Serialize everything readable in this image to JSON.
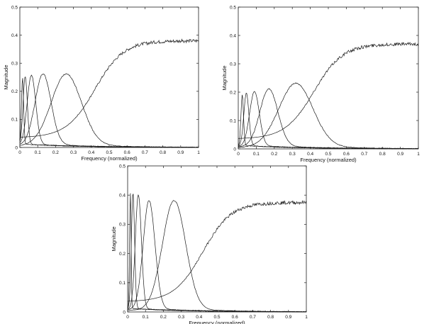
{
  "chart_data": [
    {
      "type": "line",
      "xlabel": "Frequency (normalized)",
      "ylabel": "Magnitude",
      "xlim": [
        0,
        1
      ],
      "ylim": [
        0,
        0.5
      ],
      "x_ticks": [
        "0",
        "0.1",
        "0.2",
        "0.3",
        "0.4",
        "0.5",
        "0.6",
        "0.7",
        "0.8",
        "0.9",
        "1"
      ],
      "y_ticks": [
        "0",
        "0.1",
        "0.2",
        "0.3",
        "0.4",
        "0.5"
      ],
      "grid": false,
      "series": [
        {
          "center": 0.0,
          "peak": 0.38,
          "width": 0.08,
          "kind": "lowpass_rise"
        },
        {
          "center": 0.26,
          "peak": 0.25,
          "width": 0.085
        },
        {
          "center": 0.13,
          "peak": 0.25,
          "width": 0.045
        },
        {
          "center": 0.065,
          "peak": 0.245,
          "width": 0.024
        },
        {
          "center": 0.03,
          "peak": 0.24,
          "width": 0.012
        },
        {
          "center": 0.015,
          "peak": 0.235,
          "width": 0.006
        }
      ]
    },
    {
      "type": "line",
      "xlabel": "Frequency (normalized)",
      "ylabel": "Magnitude",
      "xlim": [
        0,
        1
      ],
      "ylim": [
        0,
        0.5
      ],
      "x_ticks": [
        "0",
        "0.1",
        "0.2",
        "0.3",
        "0.4",
        "0.5",
        "0.6",
        "0.7",
        "0.8",
        "0.9",
        "1"
      ],
      "y_ticks": [
        "0",
        "0.1",
        "0.2",
        "0.3",
        "0.4",
        "0.5"
      ],
      "grid": false,
      "series": [
        {
          "center": 0.0,
          "peak": 0.37,
          "width": 0.09,
          "kind": "lowpass_rise"
        },
        {
          "center": 0.32,
          "peak": 0.22,
          "width": 0.095
        },
        {
          "center": 0.17,
          "peak": 0.2,
          "width": 0.05
        },
        {
          "center": 0.09,
          "peak": 0.19,
          "width": 0.027
        },
        {
          "center": 0.045,
          "peak": 0.185,
          "width": 0.014
        },
        {
          "center": 0.022,
          "peak": 0.18,
          "width": 0.007
        }
      ]
    },
    {
      "type": "line",
      "xlabel": "Frequency (normalized)",
      "ylabel": "Magnitude",
      "xlim": [
        0,
        1
      ],
      "ylim": [
        0,
        0.5
      ],
      "x_ticks": [
        "0",
        "0.1",
        "0.2",
        "0.3",
        "0.4",
        "0.5",
        "0.6",
        "0.7",
        "0.8",
        "0.9",
        "1"
      ],
      "y_ticks": [
        "0",
        "0.1",
        "0.2",
        "0.3",
        "0.4",
        "0.5"
      ],
      "grid": false,
      "series": [
        {
          "center": 0.0,
          "peak": 0.375,
          "width": 0.09,
          "kind": "lowpass_rise"
        },
        {
          "center": 0.26,
          "peak": 0.37,
          "width": 0.065
        },
        {
          "center": 0.12,
          "peak": 0.37,
          "width": 0.033
        },
        {
          "center": 0.06,
          "peak": 0.39,
          "width": 0.017
        },
        {
          "center": 0.03,
          "peak": 0.395,
          "width": 0.009
        },
        {
          "center": 0.015,
          "peak": 0.4,
          "width": 0.004
        }
      ]
    }
  ]
}
